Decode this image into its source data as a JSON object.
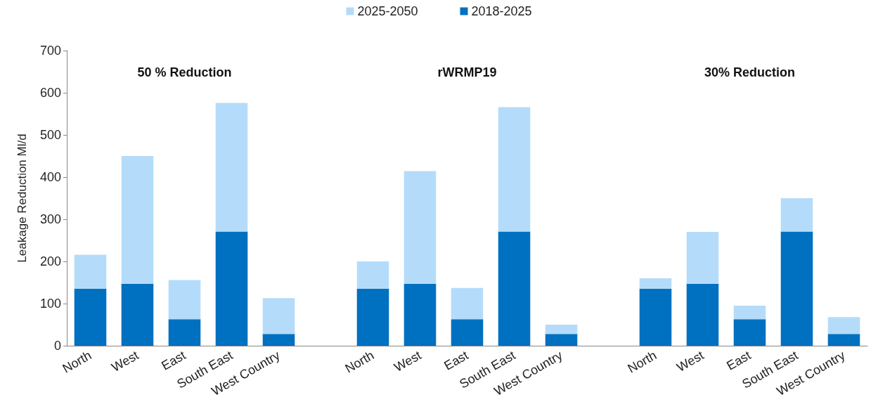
{
  "chart_data": {
    "type": "bar",
    "stacked": true,
    "ylabel": "Leakage Reduction Ml/d",
    "categories": [
      "North",
      "West",
      "East",
      "South East",
      "West Country",
      null,
      "North",
      "West",
      "East",
      "South East",
      "West Country",
      null,
      "North",
      "West",
      "East",
      "South East",
      "West Country"
    ],
    "series": [
      {
        "name": "2018-2025",
        "color": "#0070c0",
        "values": [
          135,
          147,
          63,
          271,
          28,
          null,
          135,
          147,
          63,
          271,
          28,
          null,
          135,
          147,
          63,
          271,
          28
        ]
      },
      {
        "name": "2025-2050",
        "color": "#b4dcfa",
        "values": [
          81,
          303,
          93,
          305,
          85,
          null,
          65,
          267,
          74,
          295,
          22,
          null,
          25,
          123,
          32,
          79,
          40
        ]
      }
    ],
    "ylim": [
      0,
      700
    ],
    "yticks": [
      0,
      100,
      200,
      300,
      400,
      500,
      600,
      700
    ],
    "annotations": [
      "50 % Reduction",
      "rWRMP19",
      "30% Reduction"
    ],
    "grid": false,
    "legend": "top"
  }
}
